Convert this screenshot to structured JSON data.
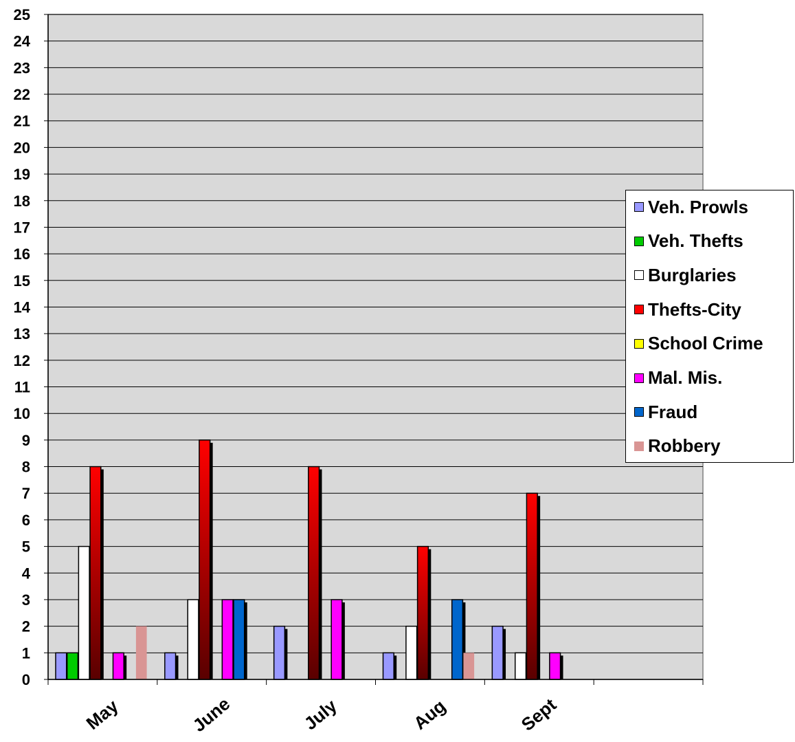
{
  "chart_data": {
    "type": "bar",
    "categories": [
      "May",
      "June",
      "July",
      "Aug",
      "Sept",
      ""
    ],
    "series": [
      {
        "name": "Veh. Prowls",
        "color": "#9999ff",
        "values": [
          1,
          1,
          2,
          1,
          2,
          0
        ]
      },
      {
        "name": "Veh. Thefts",
        "color": "#00cc00",
        "values": [
          1,
          0,
          0,
          0,
          0,
          0
        ]
      },
      {
        "name": "Burglaries",
        "color": "#ffffff",
        "values": [
          5,
          3,
          0,
          2,
          1,
          0
        ]
      },
      {
        "name": "Thefts-City",
        "color": "#ff0000",
        "values": [
          8,
          9,
          8,
          5,
          7,
          0
        ]
      },
      {
        "name": "School Crime",
        "color": "#ffff00",
        "values": [
          0,
          0,
          0,
          0,
          0,
          0
        ]
      },
      {
        "name": "Mal. Mis.",
        "color": "#ff00ff",
        "values": [
          1,
          3,
          3,
          0,
          1,
          0
        ]
      },
      {
        "name": "Fraud",
        "color": "#0066cc",
        "values": [
          0,
          3,
          0,
          3,
          0,
          0
        ]
      },
      {
        "name": "Robbery",
        "color": "#d99594",
        "values": [
          2,
          0,
          0,
          1,
          0,
          0
        ]
      }
    ],
    "ylim": [
      0,
      25
    ],
    "yticks": [
      0,
      1,
      2,
      3,
      4,
      5,
      6,
      7,
      8,
      9,
      10,
      11,
      12,
      13,
      14,
      15,
      16,
      17,
      18,
      19,
      20,
      21,
      22,
      23,
      24,
      25
    ],
    "grid": true,
    "legend_position": "right",
    "plot_background": "#d9d9d9"
  }
}
